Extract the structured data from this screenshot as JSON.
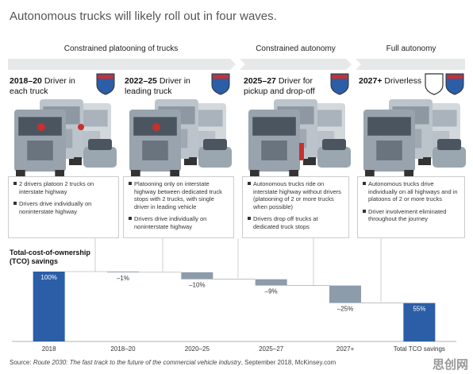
{
  "title": "Autonomous trucks will likely roll out in four waves.",
  "phases": [
    "Constrained platooning of trucks",
    "Constrained autonomy",
    "Full autonomy"
  ],
  "waves": [
    {
      "period": "2018–20",
      "label": "Driver in each truck",
      "bullets": [
        "2 drivers platoon 2 trucks on interstate highway",
        "Drivers drive individually on noninterstate highway"
      ]
    },
    {
      "period": "2022–25",
      "label": "Driver in leading truck",
      "bullets": [
        "Platooning only on interstate highway between dedicated truck stops with 2 trucks, with single driver in leading vehicle",
        "Drivers drive individually on noninterstate highway"
      ]
    },
    {
      "period": "2025–27",
      "label": "Driver for pickup and drop-off",
      "bullets": [
        "Autonomous trucks ride on interstate highway without drivers (platooning of 2 or more trucks when possible)",
        "Drivers drop off trucks at dedicated truck stops"
      ]
    },
    {
      "period": "2027+",
      "label": "Driverless",
      "bullets": [
        "Autonomous trucks drive individually on all highways and in platoons of 2 or more trucks",
        "Driver involvement eliminated throughout the journey"
      ]
    }
  ],
  "chart_data": {
    "type": "waterfall",
    "y_label": "Total-cost-of-ownership (TCO) savings",
    "categories": [
      "2018",
      "2018–20",
      "2020–25",
      "2025–27",
      "2027+",
      "Total TCO savings"
    ],
    "values": [
      100,
      -1,
      -10,
      -9,
      -25,
      55
    ],
    "value_labels": [
      "100%",
      "–1%",
      "–10%",
      "–9%",
      "–25%",
      "55%"
    ],
    "color": "#2b5ea7",
    "change_color": "#8d9cab",
    "ylim": [
      0,
      100
    ]
  },
  "source": {
    "label": "Source:",
    "title": "Route 2030: The fast track to the future of the commercial vehicle industry",
    "rest": ", September 2018, McKinsey.com"
  },
  "watermark": "思创网"
}
